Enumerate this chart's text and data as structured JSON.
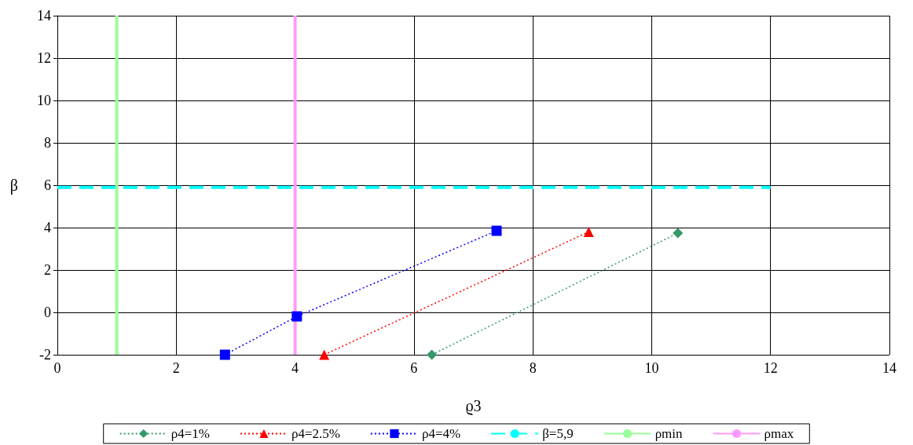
{
  "chart_data": {
    "type": "line",
    "xlabel": "ϱ3",
    "ylabel": "β",
    "xlim": [
      0,
      14
    ],
    "xticks": [
      0,
      2,
      4,
      6,
      8,
      10,
      12,
      14
    ],
    "ylim": [
      -2,
      14
    ],
    "yticks": [
      -2,
      0,
      2,
      4,
      6,
      8,
      10,
      12,
      14
    ],
    "grid": true,
    "legend": "bottom",
    "series": [
      {
        "name": "ρ4=1%",
        "color": "#339966",
        "marker": "diamond",
        "line_style": "dotted",
        "x": [
          6.3,
          10.44
        ],
        "values": [
          -2,
          3.74
        ]
      },
      {
        "name": "ρ4=2.5%",
        "color": "#ff0000",
        "marker": "triangle",
        "line_style": "dotted",
        "x": [
          4.49,
          8.94
        ],
        "values": [
          -2,
          3.8
        ]
      },
      {
        "name": "ρ4=4%",
        "color": "#0000ff",
        "marker": "square",
        "line_style": "dotted",
        "x": [
          2.82,
          4.03,
          7.39
        ],
        "values": [
          -2,
          -0.19,
          3.85
        ]
      },
      {
        "name": "β=5,9",
        "color": "#00ffff",
        "marker": "none",
        "line_style": "dashed",
        "x": [
          0,
          12
        ],
        "values": [
          5.9,
          5.9
        ]
      },
      {
        "name": "ρmin",
        "color": "#99ff99",
        "marker": "none",
        "line_style": "solid",
        "x": [
          1,
          1
        ],
        "values": [
          -2,
          14
        ]
      },
      {
        "name": "ρmax",
        "color": "#ff99ff",
        "marker": "none",
        "line_style": "solid",
        "x": [
          4,
          4
        ],
        "values": [
          -2,
          14
        ]
      }
    ]
  }
}
